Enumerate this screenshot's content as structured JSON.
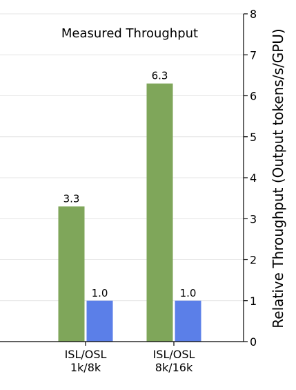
{
  "chart_data": {
    "type": "bar",
    "title": "Measured Throughput",
    "xlabel": "",
    "ylabel": "Relative Throughput (Output tokens/s/GPU)",
    "y_axis_side": "right",
    "ylim": [
      0,
      8
    ],
    "yticks": [
      0,
      1,
      2,
      3,
      4,
      5,
      6,
      7,
      8
    ],
    "grid": "y",
    "legend": "none",
    "categories": [
      [
        "ISL/OSL",
        "1k/8k"
      ],
      [
        "ISL/OSL",
        "8k/16k"
      ]
    ],
    "series": [
      {
        "values": [
          3.3,
          6.3
        ],
        "value_labels": [
          "3.3",
          "6.3"
        ],
        "color": "#7fa65a"
      },
      {
        "values": [
          1.0,
          1.0
        ],
        "value_labels": [
          "1.0",
          "1.0"
        ],
        "color": "#5b7fe8"
      }
    ]
  }
}
